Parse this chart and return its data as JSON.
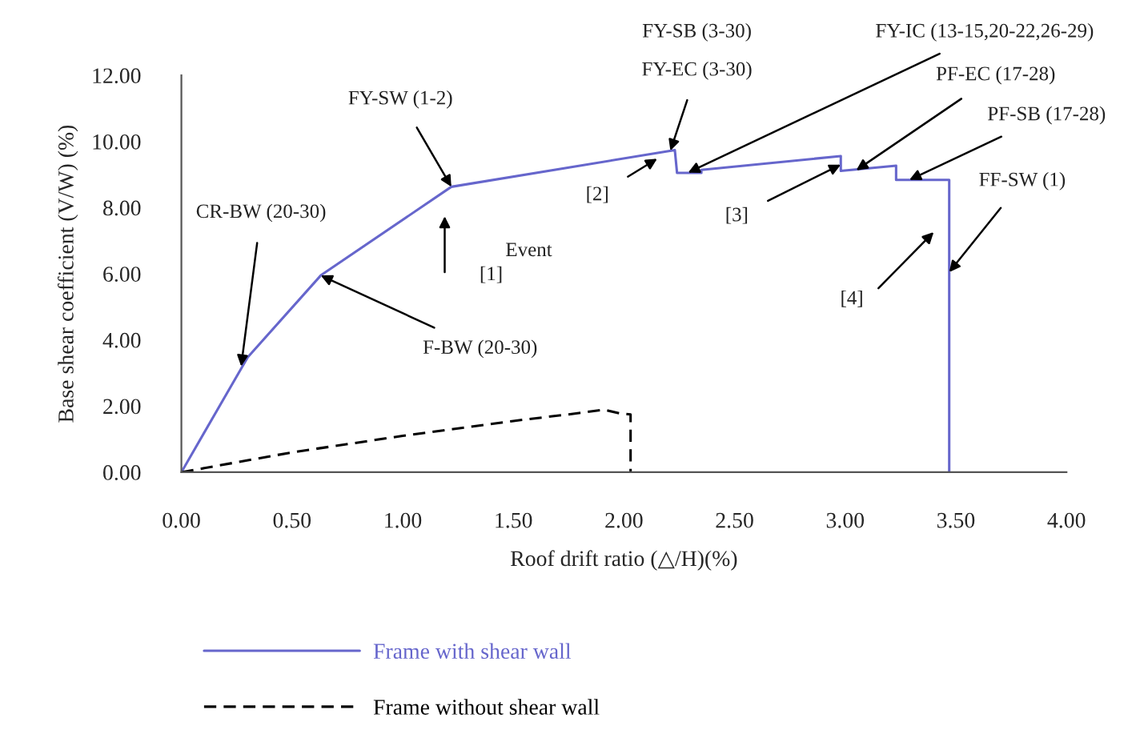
{
  "chart_data": {
    "type": "line",
    "xlabel": "Roof drift ratio (△/H)(%)",
    "ylabel": "Base shear coefficient (V/W) (%)",
    "series": [
      {
        "name": "Frame with shear wall",
        "color": "#6666cc",
        "line_style": "solid",
        "x": [
          0,
          0.3,
          0.63,
          1.22,
          2.23,
          2.24,
          2.35,
          2.35,
          2.98,
          2.98,
          3.23,
          3.23,
          3.47,
          3.47
        ],
        "values": [
          0,
          3.48,
          5.95,
          8.63,
          9.74,
          9.05,
          9.05,
          9.14,
          9.56,
          9.11,
          9.27,
          8.84,
          8.84,
          0
        ]
      },
      {
        "name": "Frame without shear wall",
        "color": "#000000",
        "line_style": "dashed",
        "x": [
          0,
          0.5,
          1.0,
          1.5,
          1.75,
          1.91,
          1.98,
          2.03,
          2.03
        ],
        "values": [
          0,
          0.6,
          1.1,
          1.55,
          1.75,
          1.89,
          1.78,
          1.75,
          0
        ]
      }
    ],
    "xlim": [
      0,
      4
    ],
    "ylim": [
      0,
      12
    ],
    "xticks": [
      {
        "value": 0,
        "label": "0.00"
      },
      {
        "value": 0.5,
        "label": "0.50"
      },
      {
        "value": 1,
        "label": "1.00"
      },
      {
        "value": 1.5,
        "label": "1.50"
      },
      {
        "value": 2,
        "label": "2.00"
      },
      {
        "value": 2.5,
        "label": "2.50"
      },
      {
        "value": 3,
        "label": "3.00"
      },
      {
        "value": 3.5,
        "label": "3.50"
      },
      {
        "value": 4,
        "label": "4.00"
      }
    ],
    "yticks": [
      {
        "value": 0,
        "label": "0.00"
      },
      {
        "value": 2,
        "label": "2.00"
      },
      {
        "value": 4,
        "label": "4.00"
      },
      {
        "value": 6,
        "label": "6.00"
      },
      {
        "value": 8,
        "label": "8.00"
      },
      {
        "value": 10,
        "label": "10.00"
      },
      {
        "value": 12,
        "label": "12.00"
      }
    ],
    "grid": false,
    "legend": "bottom",
    "marker": "none",
    "annotations": [
      {
        "text": "FY-SW (1-2)",
        "x": 1.22,
        "y": 8.63
      },
      {
        "text": "CR-BW (20-30)",
        "x": 0.27,
        "y": 3.2
      },
      {
        "text": "F-BW (20-30)",
        "x": 0.63,
        "y": 5.95
      },
      "Event",
      "[1]",
      "FY-SB (3-30)",
      {
        "text": "FY-EC (3-30)",
        "x": 2.21,
        "y": 9.72
      },
      {
        "text": "FY-IC (13-15,20-22,26-29)",
        "x": 2.29,
        "y": 9.06
      },
      {
        "text": "PF-EC (17-28)",
        "x": 3.05,
        "y": 9.13
      },
      {
        "text": "PF-SB (17-28)",
        "x": 3.29,
        "y": 8.84
      },
      {
        "text": "FF-SW (1)",
        "x": 3.47,
        "y": 6.05
      },
      {
        "text": "[2]",
        "x": 2.15,
        "y": 9.48
      },
      {
        "text": "[3]",
        "x": 2.98,
        "y": 9.3
      },
      "[4]"
    ]
  }
}
